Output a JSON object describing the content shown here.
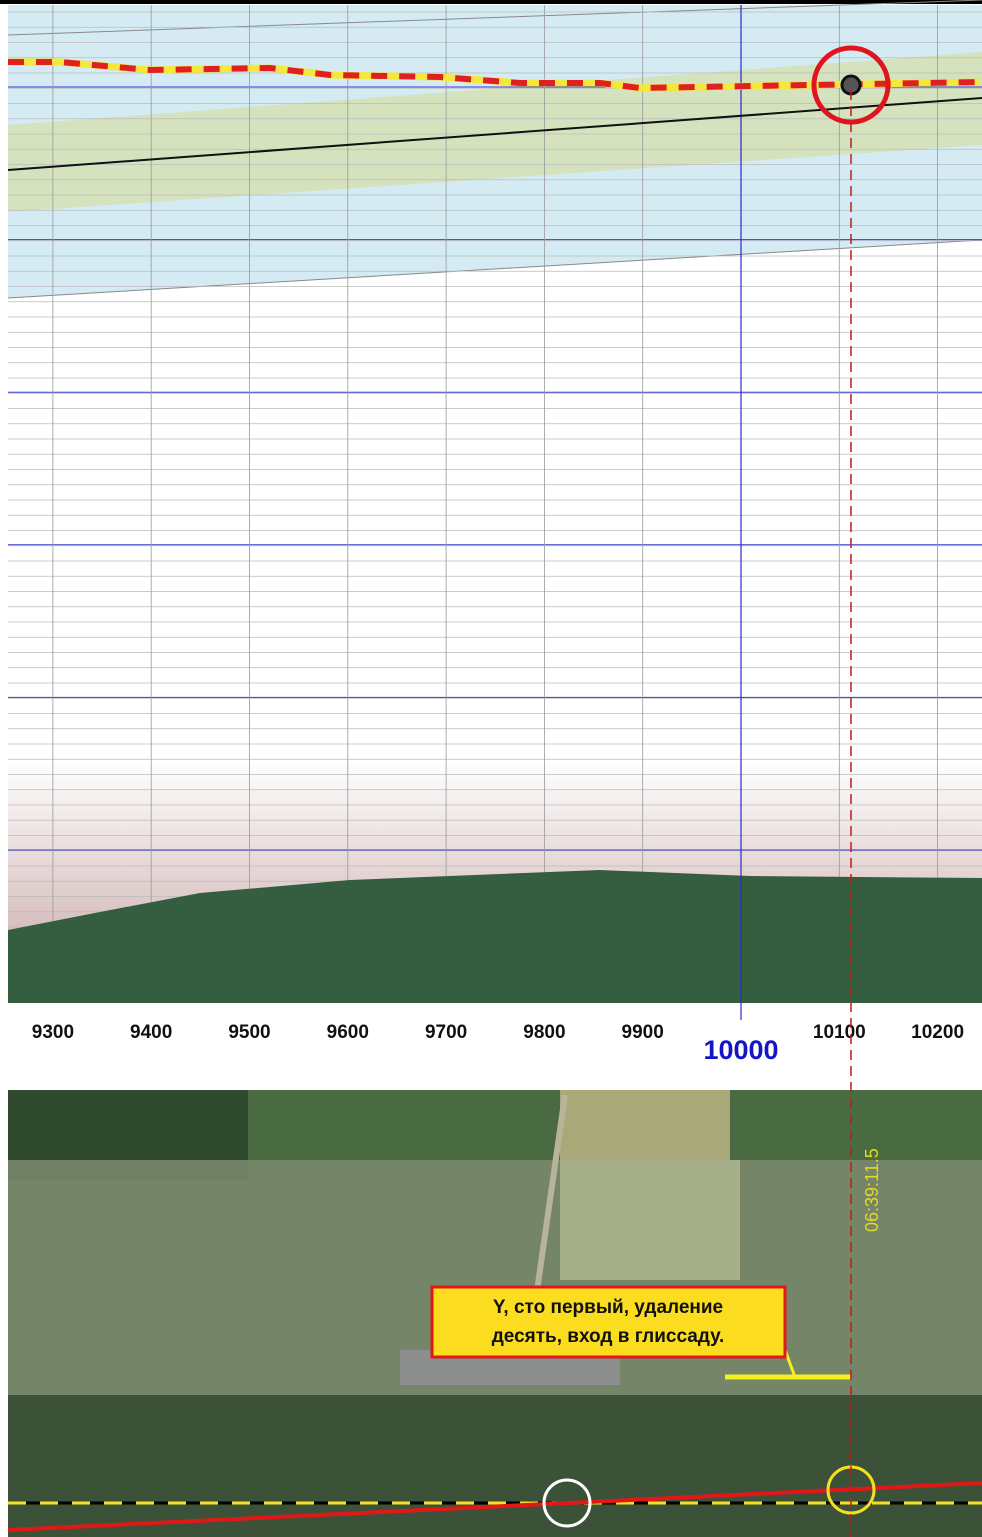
{
  "axis": {
    "ticks": [
      9300,
      9400,
      9500,
      9600,
      9700,
      9800,
      9900,
      10100,
      10200
    ],
    "highlight": 10000
  },
  "map": {
    "time": "06:39:11.5",
    "message": [
      "Y,  сто первый,  удаление",
      "десять, вход в глиссаду."
    ]
  }
}
